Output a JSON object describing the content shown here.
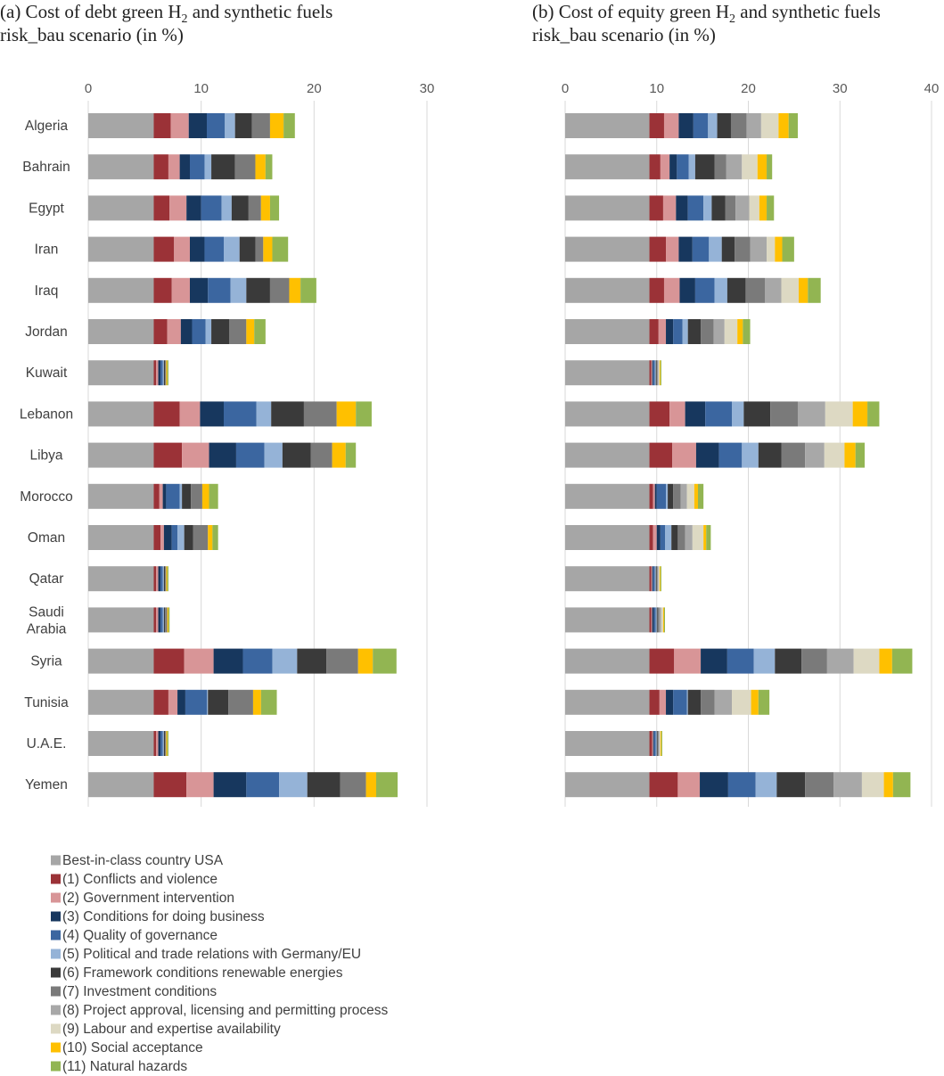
{
  "chart_data": [
    {
      "type": "bar",
      "orientation": "horizontal",
      "stacked": true,
      "title_line1_prefix": "(a) Cost of debt green H",
      "title_sub": "2",
      "title_line1_suffix": " and synthetic fuels",
      "title_line2": "risk_bau scenario (in %)",
      "xlim": [
        0,
        30
      ],
      "xticks": [
        "0",
        "10",
        "20",
        "30"
      ],
      "grid": true,
      "categories": [
        "Algeria",
        "Bahrain",
        "Egypt",
        "Iran",
        "Iraq",
        "Jordan",
        "Kuwait",
        "Lebanon",
        "Libya",
        "Morocco",
        "Oman",
        "Qatar",
        "Saudi Arabia",
        "Syria",
        "Tunisia",
        "U.A.E.",
        "Yemen"
      ],
      "values": [
        [
          5.8,
          1.5,
          1.6,
          1.6,
          1.6,
          0.9,
          1.5,
          1.6,
          0,
          0,
          1.2,
          1.0
        ],
        [
          5.8,
          1.3,
          1.0,
          0.9,
          1.3,
          0.6,
          2.1,
          1.8,
          0,
          0,
          0.9,
          0.6
        ],
        [
          5.8,
          1.4,
          1.5,
          1.3,
          1.8,
          0.9,
          1.5,
          1.1,
          0,
          0,
          0.8,
          0.8
        ],
        [
          5.8,
          1.8,
          1.4,
          1.3,
          1.7,
          1.4,
          1.4,
          0.7,
          0,
          0,
          0.8,
          1.4
        ],
        [
          5.8,
          1.6,
          1.6,
          1.6,
          2.0,
          1.4,
          2.1,
          1.7,
          0,
          0,
          1.0,
          1.4
        ],
        [
          5.8,
          1.2,
          1.2,
          1.0,
          1.2,
          0.5,
          1.6,
          1.5,
          0,
          0,
          0.7,
          1.0
        ],
        [
          5.8,
          0.2,
          0.2,
          0.2,
          0.2,
          0.1,
          0.1,
          0.1,
          0,
          0,
          0.1,
          0.1
        ],
        [
          5.8,
          2.3,
          1.8,
          2.1,
          2.9,
          1.3,
          2.9,
          2.9,
          0,
          0,
          1.7,
          1.4
        ],
        [
          5.8,
          2.5,
          2.4,
          2.4,
          2.5,
          1.6,
          2.5,
          1.9,
          0,
          0,
          1.2,
          0.9
        ],
        [
          5.8,
          0.5,
          0.3,
          0.3,
          1.2,
          0.2,
          0.8,
          1.0,
          0,
          0,
          0.6,
          0.8
        ],
        [
          5.8,
          0.6,
          0.3,
          0.7,
          0.5,
          0.6,
          0.8,
          1.3,
          0,
          0,
          0.4,
          0.5
        ],
        [
          5.8,
          0.2,
          0.2,
          0.2,
          0.2,
          0.1,
          0.1,
          0.1,
          0,
          0,
          0.1,
          0.1
        ],
        [
          5.8,
          0.2,
          0.2,
          0.2,
          0.2,
          0.1,
          0.1,
          0.2,
          0,
          0,
          0.1,
          0.1
        ],
        [
          5.8,
          2.7,
          2.6,
          2.6,
          2.6,
          2.2,
          2.6,
          2.8,
          0,
          0,
          1.3,
          2.1
        ],
        [
          5.8,
          1.3,
          0.8,
          0.7,
          1.9,
          0.1,
          1.8,
          2.2,
          0,
          0,
          0.7,
          1.4
        ],
        [
          5.8,
          0.2,
          0.2,
          0.2,
          0.2,
          0.1,
          0.1,
          0.1,
          0,
          0,
          0.1,
          0.1
        ],
        [
          5.8,
          2.9,
          2.4,
          2.9,
          2.9,
          2.5,
          2.9,
          2.3,
          0,
          0,
          0.9,
          1.9
        ]
      ]
    },
    {
      "type": "bar",
      "orientation": "horizontal",
      "stacked": true,
      "title_line1_prefix": "(b) Cost of equity green H",
      "title_sub": "2",
      "title_line1_suffix": " and synthetic fuels",
      "title_line2": "risk_bau scenario (in %)",
      "xlim": [
        0,
        40
      ],
      "xticks": [
        "0",
        "10",
        "20",
        "30",
        "40"
      ],
      "grid": true,
      "categories": [
        "Algeria",
        "Bahrain",
        "Egypt",
        "Iran",
        "Iraq",
        "Jordan",
        "Kuwait",
        "Lebanon",
        "Libya",
        "Morocco",
        "Oman",
        "Qatar",
        "Saudi Arabia",
        "Syria",
        "Tunisia",
        "U.A.E.",
        "Yemen"
      ],
      "values": [
        [
          9.2,
          1.6,
          1.6,
          1.6,
          1.6,
          1.0,
          1.5,
          1.7,
          1.6,
          1.9,
          1.1,
          1.0
        ],
        [
          9.2,
          1.2,
          1.0,
          0.8,
          1.3,
          0.7,
          2.1,
          1.3,
          1.7,
          1.7,
          1.0,
          0.6
        ],
        [
          9.2,
          1.5,
          1.4,
          1.3,
          1.7,
          0.9,
          1.5,
          1.1,
          1.5,
          1.1,
          0.8,
          0.8
        ],
        [
          9.2,
          1.8,
          1.4,
          1.5,
          1.8,
          1.4,
          1.4,
          1.7,
          1.8,
          0.9,
          0.8,
          1.3
        ],
        [
          9.2,
          1.6,
          1.7,
          1.7,
          2.1,
          1.4,
          2.0,
          2.1,
          1.8,
          1.9,
          1.0,
          1.4
        ],
        [
          9.2,
          1.0,
          0.8,
          0.8,
          1.0,
          0.6,
          1.4,
          1.4,
          1.2,
          1.4,
          0.6,
          0.8
        ],
        [
          9.2,
          0.2,
          0.1,
          0.1,
          0.2,
          0.1,
          0.1,
          0.1,
          0.1,
          0.1,
          0.1,
          0.1
        ],
        [
          9.2,
          2.2,
          1.7,
          2.2,
          2.9,
          1.3,
          2.9,
          3.0,
          3.0,
          3.0,
          1.6,
          1.3
        ],
        [
          9.2,
          2.5,
          2.6,
          2.5,
          2.5,
          1.8,
          2.5,
          2.6,
          2.1,
          2.2,
          1.2,
          1.0
        ],
        [
          9.2,
          0.4,
          0.2,
          0.2,
          1.0,
          0.2,
          0.6,
          0.8,
          0.7,
          0.8,
          0.4,
          0.6
        ],
        [
          9.2,
          0.4,
          0.4,
          0.4,
          0.5,
          0.7,
          0.7,
          0.8,
          0.8,
          1.2,
          0.3,
          0.5
        ],
        [
          9.2,
          0.2,
          0.1,
          0.1,
          0.2,
          0.1,
          0.1,
          0.1,
          0.1,
          0.1,
          0.1,
          0.1
        ],
        [
          9.2,
          0.2,
          0.1,
          0.2,
          0.2,
          0.1,
          0.1,
          0.2,
          0.2,
          0.2,
          0.1,
          0.1
        ],
        [
          9.2,
          2.7,
          2.9,
          2.9,
          2.9,
          2.3,
          2.9,
          2.8,
          2.9,
          2.8,
          1.4,
          2.2
        ],
        [
          9.2,
          1.1,
          0.7,
          0.8,
          1.5,
          0.1,
          1.4,
          1.5,
          1.9,
          2.1,
          0.8,
          1.2
        ],
        [
          9.2,
          0.3,
          0.1,
          0.1,
          0.2,
          0.1,
          0.1,
          0.1,
          0.1,
          0.1,
          0.1,
          0.1
        ],
        [
          9.2,
          3.1,
          2.4,
          3.1,
          3.0,
          2.3,
          3.1,
          3.1,
          3.1,
          2.4,
          1.0,
          1.9
        ]
      ]
    }
  ],
  "legend": [
    {
      "label": "Best-in-class country  USA",
      "color": "#a6a6a6"
    },
    {
      "label": "(1) Conflicts and violence",
      "color": "#9b3237"
    },
    {
      "label": "(2) Government intervention",
      "color": "#d89597"
    },
    {
      "label": "(3) Conditions for doing business",
      "color": "#17375e"
    },
    {
      "label": "(4) Quality of governance",
      "color": "#3b66a0"
    },
    {
      "label": "(5) Political and trade relations with Germany/EU",
      "color": "#95b3d7"
    },
    {
      "label": "(6) Framework conditions renewable energies",
      "color": "#3a3a3a"
    },
    {
      "label": "(7) Investment conditions",
      "color": "#7a7a7a"
    },
    {
      "label": "(8) Project approval, licensing and permitting process",
      "color": "#a8a8a8"
    },
    {
      "label": "(9) Labour and expertise availability",
      "color": "#ddd9c3"
    },
    {
      "label": "(10) Social acceptance",
      "color": "#ffc000"
    },
    {
      "label": "(11) Natural hazards",
      "color": "#92b552"
    }
  ]
}
